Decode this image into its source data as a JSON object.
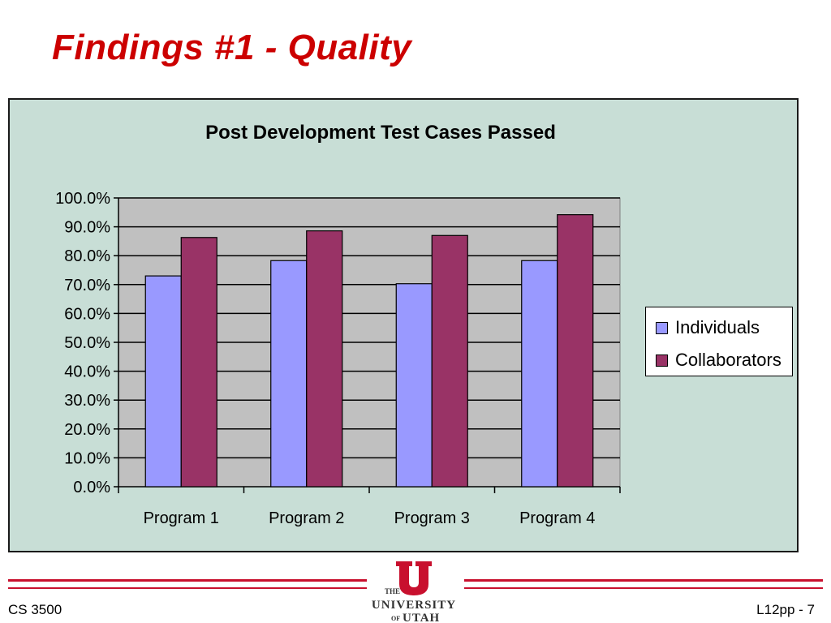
{
  "slide": {
    "title": "Findings #1 - Quality",
    "footer_left": "CS 3500",
    "footer_right": "L12pp - 7"
  },
  "logo": {
    "line1": "THE",
    "line2": "UNIVERSITY",
    "line3_small": "OF",
    "line3": "UTAH",
    "color": "#c8102e"
  },
  "chart_data": {
    "type": "bar",
    "title": "Post Development Test Cases Passed",
    "categories": [
      "Program 1",
      "Program 2",
      "Program 3",
      "Program 4"
    ],
    "series": [
      {
        "name": "Individuals",
        "color": "#9999ff",
        "values": [
          73.0,
          78.3,
          70.3,
          78.3
        ]
      },
      {
        "name": "Collaborators",
        "color": "#993366",
        "values": [
          86.3,
          88.6,
          87.0,
          94.2
        ]
      }
    ],
    "ylim": [
      0,
      100
    ],
    "yticks": [
      "0.0%",
      "10.0%",
      "20.0%",
      "30.0%",
      "40.0%",
      "50.0%",
      "60.0%",
      "70.0%",
      "80.0%",
      "90.0%",
      "100.0%"
    ],
    "grid": true,
    "plot_background": "#c0c0c0",
    "legend_position": "right"
  }
}
